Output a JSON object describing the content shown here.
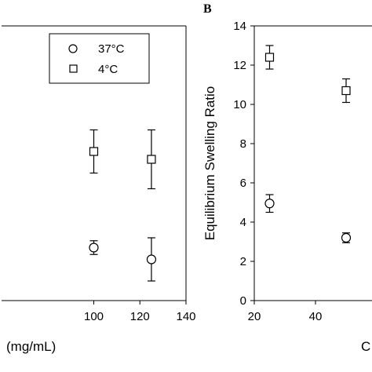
{
  "chart_data": [
    {
      "type": "scatter",
      "panel_label": "",
      "xlabel": "(mg/mL)",
      "ylabel": "",
      "xlim": [
        60,
        140
      ],
      "ylim": [
        0,
        14
      ],
      "xticks": [
        "100",
        "120",
        "140"
      ],
      "legend": {
        "placement": "top-right",
        "entries": [
          "37°C",
          "4°C"
        ]
      },
      "series": [
        {
          "name": "37°C",
          "marker": "circle",
          "x": [
            100,
            125
          ],
          "y": [
            2.7,
            2.1
          ],
          "err": [
            0.35,
            1.1
          ]
        },
        {
          "name": "4°C",
          "marker": "square",
          "x": [
            100,
            125
          ],
          "y": [
            7.6,
            7.2
          ],
          "err": [
            1.1,
            1.5
          ]
        }
      ]
    },
    {
      "type": "scatter",
      "panel_label": "B",
      "xlabel": "C",
      "ylabel": "Equilibrium Swelling Ratio",
      "xlim": [
        20,
        60
      ],
      "ylim": [
        0,
        14
      ],
      "xticks": [
        "20",
        "40"
      ],
      "yticks": [
        "0",
        "2",
        "4",
        "6",
        "8",
        "10",
        "12",
        "14"
      ],
      "series": [
        {
          "name": "37°C",
          "marker": "circle",
          "x": [
            25,
            50
          ],
          "y": [
            4.95,
            3.2
          ],
          "err": [
            0.45,
            0.25
          ]
        },
        {
          "name": "4°C",
          "marker": "square",
          "x": [
            25,
            50
          ],
          "y": [
            12.4,
            10.7
          ],
          "err": [
            0.6,
            0.6
          ]
        }
      ]
    }
  ]
}
